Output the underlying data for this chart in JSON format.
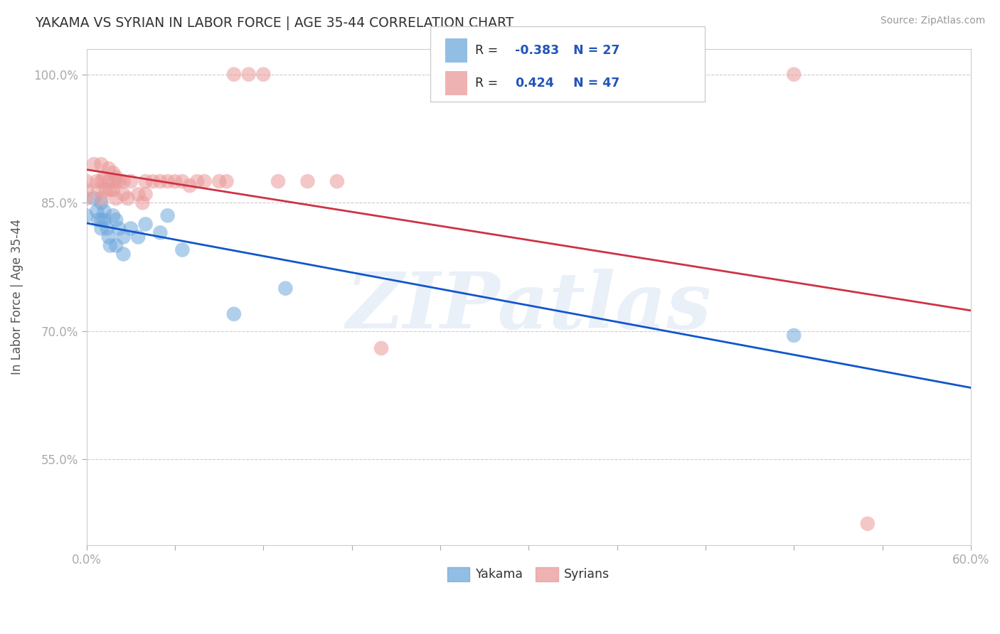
{
  "title": "YAKAMA VS SYRIAN IN LABOR FORCE | AGE 35-44 CORRELATION CHART",
  "source": "Source: ZipAtlas.com",
  "ylabel": "In Labor Force | Age 35-44",
  "xlim": [
    0.0,
    0.6
  ],
  "ylim": [
    0.45,
    1.03
  ],
  "xticks": [
    0.0,
    0.06,
    0.12,
    0.18,
    0.24,
    0.3,
    0.36,
    0.42,
    0.48,
    0.54,
    0.6
  ],
  "yticks": [
    0.55,
    0.7,
    0.85,
    1.0
  ],
  "yticklabels": [
    "55.0%",
    "70.0%",
    "85.0%",
    "100.0%"
  ],
  "yakama_color": "#6fa8dc",
  "syrian_color": "#ea9999",
  "yakama_line_color": "#1155cc",
  "syrian_line_color": "#cc3344",
  "yakama_R": -0.383,
  "yakama_N": 27,
  "syrian_R": 0.424,
  "syrian_N": 47,
  "yakama_x": [
    0.0,
    0.005,
    0.007,
    0.008,
    0.01,
    0.01,
    0.01,
    0.012,
    0.012,
    0.014,
    0.015,
    0.016,
    0.018,
    0.02,
    0.02,
    0.022,
    0.025,
    0.025,
    0.03,
    0.035,
    0.04,
    0.05,
    0.055,
    0.065,
    0.1,
    0.135,
    0.48
  ],
  "yakama_y": [
    0.835,
    0.855,
    0.84,
    0.83,
    0.85,
    0.83,
    0.82,
    0.84,
    0.83,
    0.82,
    0.81,
    0.8,
    0.835,
    0.83,
    0.8,
    0.82,
    0.81,
    0.79,
    0.82,
    0.81,
    0.825,
    0.815,
    0.835,
    0.795,
    0.72,
    0.75,
    0.695
  ],
  "syrian_x": [
    0.0,
    0.0,
    0.0,
    0.005,
    0.007,
    0.008,
    0.01,
    0.01,
    0.01,
    0.012,
    0.013,
    0.015,
    0.015,
    0.016,
    0.018,
    0.018,
    0.02,
    0.02,
    0.02,
    0.022,
    0.025,
    0.025,
    0.028,
    0.03,
    0.035,
    0.038,
    0.04,
    0.04,
    0.045,
    0.05,
    0.055,
    0.06,
    0.065,
    0.07,
    0.075,
    0.08,
    0.09,
    0.095,
    0.1,
    0.11,
    0.12,
    0.13,
    0.15,
    0.17,
    0.2,
    0.48,
    0.53
  ],
  "syrian_y": [
    0.875,
    0.865,
    0.855,
    0.895,
    0.875,
    0.865,
    0.895,
    0.875,
    0.855,
    0.88,
    0.865,
    0.89,
    0.875,
    0.865,
    0.885,
    0.865,
    0.88,
    0.875,
    0.855,
    0.875,
    0.875,
    0.86,
    0.855,
    0.875,
    0.86,
    0.85,
    0.875,
    0.86,
    0.875,
    0.875,
    0.875,
    0.875,
    0.875,
    0.87,
    0.875,
    0.875,
    0.875,
    0.875,
    1.0,
    1.0,
    1.0,
    0.875,
    0.875,
    0.875,
    0.68,
    1.0,
    0.475
  ],
  "watermark": "ZIPatlas",
  "background_color": "#ffffff",
  "grid_color": "#cccccc",
  "title_color": "#333333",
  "axis_label_color": "#555555",
  "tick_label_color": "#5588bb"
}
